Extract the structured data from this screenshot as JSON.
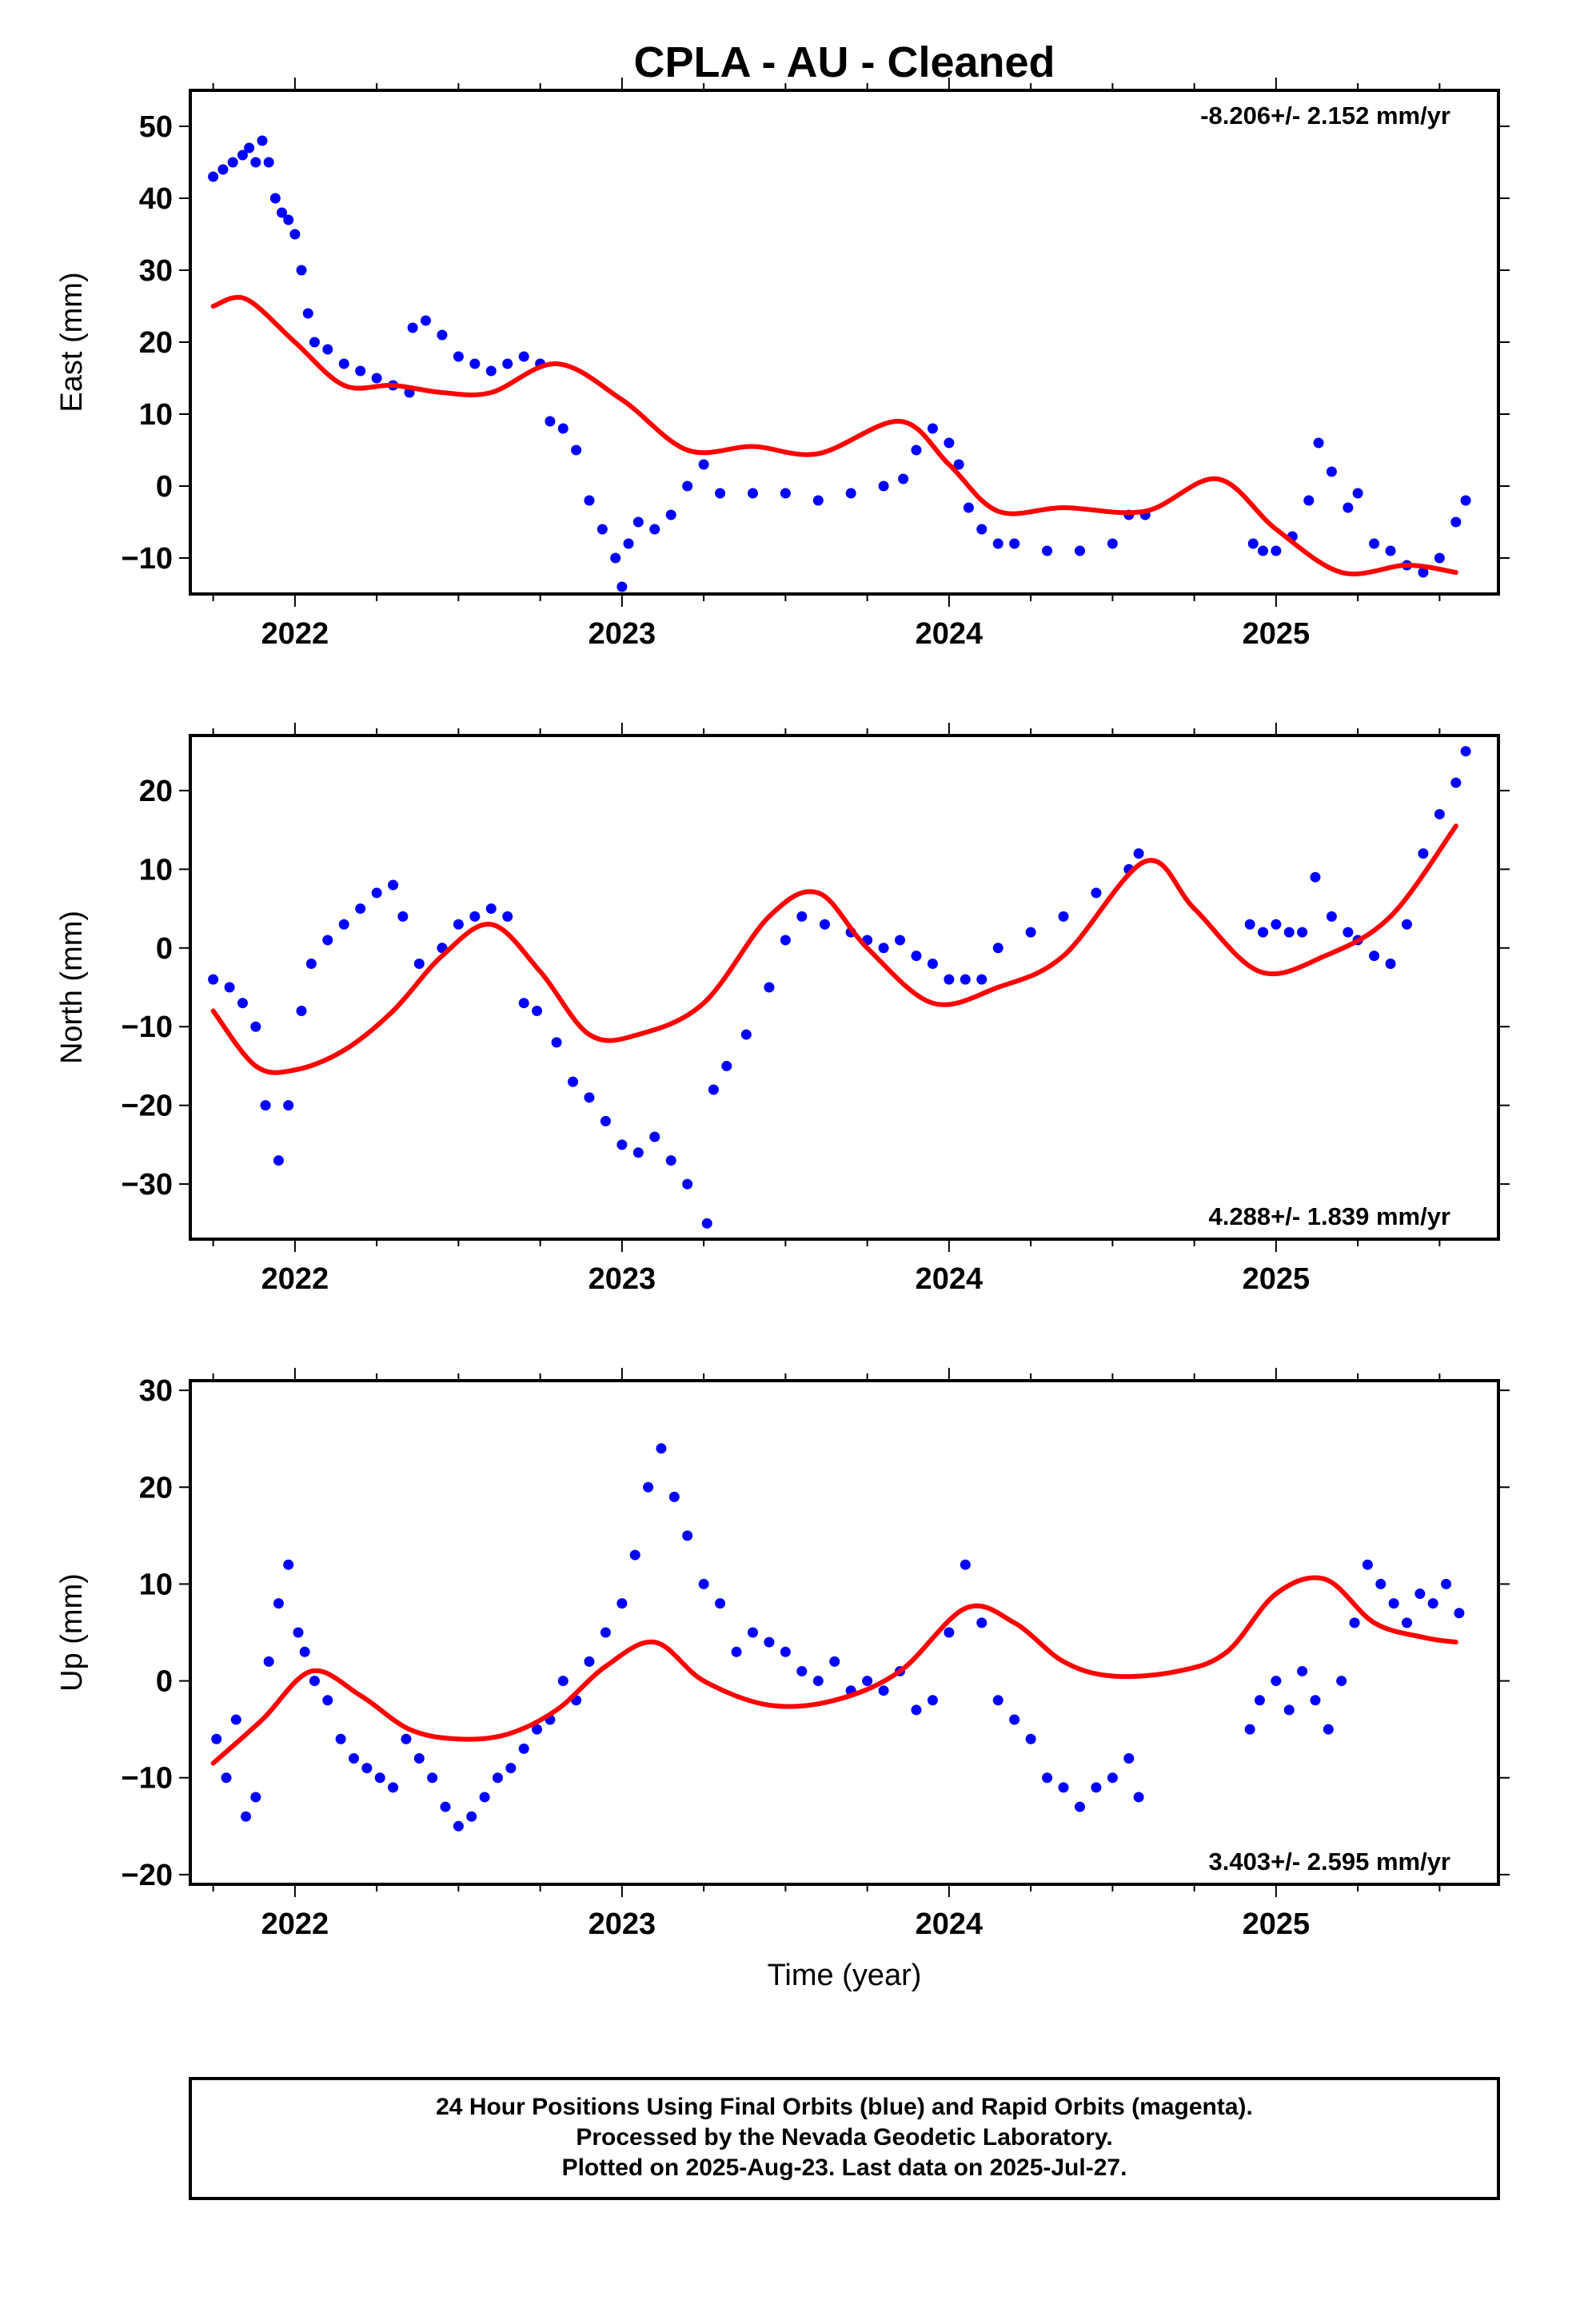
{
  "title": "CPLA  - AU - Cleaned",
  "xlabel": "Time (year)",
  "footer": {
    "line1": "24 Hour Positions Using Final Orbits (blue) and Rapid Orbits (magenta).",
    "line2": "Processed by the Nevada Geodetic Laboratory.",
    "line3": "Plotted on 2025-Aug-23. Last data on 2025-Jul-27."
  },
  "colors": {
    "points": "#0000ff",
    "fit": "#ff0000",
    "frame": "#000000"
  },
  "chart_data": [
    {
      "type": "scatter",
      "ylabel": "East (mm)",
      "rate": "-8.206+/- 2.152 mm/yr",
      "xlim": [
        2021.68,
        2025.68
      ],
      "ylim": [
        -15,
        55
      ],
      "xticks": [
        2022,
        2023,
        2024,
        2025
      ],
      "yticks": [
        -10,
        0,
        10,
        20,
        30,
        40,
        50
      ],
      "legend_position": "top-right",
      "grid": false,
      "series": [
        {
          "kind": "points",
          "x": [
            2021.75,
            2021.78,
            2021.81,
            2021.84,
            2021.86,
            2021.88,
            2021.9,
            2021.92,
            2021.94,
            2021.96,
            2021.98,
            2022.0,
            2022.02,
            2022.04,
            2022.06,
            2022.1,
            2022.15,
            2022.2,
            2022.25,
            2022.3,
            2022.35,
            2022.36,
            2022.4,
            2022.45,
            2022.5,
            2022.55,
            2022.6,
            2022.65,
            2022.7,
            2022.75,
            2022.78,
            2022.82,
            2022.86,
            2022.9,
            2022.94,
            2022.98,
            2023.0,
            2023.02,
            2023.05,
            2023.1,
            2023.15,
            2023.2,
            2023.25,
            2023.3,
            2023.4,
            2023.5,
            2023.6,
            2023.7,
            2023.8,
            2023.86,
            2023.9,
            2023.95,
            2024.0,
            2024.03,
            2024.06,
            2024.1,
            2024.15,
            2024.2,
            2024.3,
            2024.4,
            2024.5,
            2024.55,
            2024.6,
            2024.93,
            2024.96,
            2025.0,
            2025.05,
            2025.1,
            2025.13,
            2025.17,
            2025.22,
            2025.25,
            2025.3,
            2025.35,
            2025.4,
            2025.45,
            2025.5,
            2025.55,
            2025.58
          ],
          "y": [
            43,
            44,
            45,
            46,
            47,
            45,
            48,
            45,
            40,
            38,
            37,
            35,
            30,
            24,
            20,
            19,
            17,
            16,
            15,
            14,
            13,
            22,
            23,
            21,
            18,
            17,
            16,
            17,
            18,
            17,
            9,
            8,
            5,
            -2,
            -6,
            -10,
            -14,
            -8,
            -5,
            -6,
            -4,
            0,
            3,
            -1,
            -1,
            -1,
            -2,
            -1,
            0,
            1,
            5,
            8,
            6,
            3,
            -3,
            -6,
            -8,
            -8,
            -9,
            -9,
            -8,
            -4,
            -4,
            -8,
            -9,
            -9,
            -7,
            -2,
            6,
            2,
            -3,
            -1,
            -8,
            -9,
            -11,
            -12,
            -10,
            -5,
            -2
          ]
        },
        {
          "kind": "fit",
          "x": [
            2021.75,
            2021.85,
            2022.0,
            2022.15,
            2022.3,
            2022.45,
            2022.6,
            2022.8,
            2023.0,
            2023.2,
            2023.4,
            2023.6,
            2023.85,
            2024.0,
            2024.15,
            2024.35,
            2024.6,
            2024.82,
            2025.0,
            2025.2,
            2025.4,
            2025.55
          ],
          "y": [
            25,
            26,
            20,
            14,
            14,
            13,
            13,
            17,
            12,
            5,
            5.5,
            4.5,
            9,
            3,
            -3.5,
            -3,
            -3.5,
            1,
            -6,
            -12,
            -11,
            -12
          ]
        }
      ]
    },
    {
      "type": "scatter",
      "ylabel": "North (mm)",
      "rate": "4.288+/- 1.839 mm/yr",
      "xlim": [
        2021.68,
        2025.68
      ],
      "ylim": [
        -37,
        27
      ],
      "xticks": [
        2022,
        2023,
        2024,
        2025
      ],
      "yticks": [
        -30,
        -20,
        -10,
        0,
        10,
        20
      ],
      "legend_position": "bottom-right",
      "grid": false,
      "series": [
        {
          "kind": "points",
          "x": [
            2021.75,
            2021.8,
            2021.84,
            2021.88,
            2021.91,
            2021.95,
            2021.98,
            2022.02,
            2022.05,
            2022.1,
            2022.15,
            2022.2,
            2022.25,
            2022.3,
            2022.33,
            2022.38,
            2022.45,
            2022.5,
            2022.55,
            2022.6,
            2022.65,
            2022.7,
            2022.74,
            2022.8,
            2022.85,
            2022.9,
            2022.95,
            2023.0,
            2023.05,
            2023.1,
            2023.15,
            2023.2,
            2023.26,
            2023.28,
            2023.32,
            2023.38,
            2023.45,
            2023.5,
            2023.55,
            2023.62,
            2023.7,
            2023.75,
            2023.8,
            2023.85,
            2023.9,
            2023.95,
            2024.0,
            2024.05,
            2024.1,
            2024.15,
            2024.25,
            2024.35,
            2024.45,
            2024.55,
            2024.58,
            2024.92,
            2024.96,
            2025.0,
            2025.04,
            2025.08,
            2025.12,
            2025.17,
            2025.22,
            2025.25,
            2025.3,
            2025.35,
            2025.4,
            2025.45,
            2025.5,
            2025.55,
            2025.58
          ],
          "y": [
            -4,
            -5,
            -7,
            -10,
            -20,
            -27,
            -20,
            -8,
            -2,
            1,
            3,
            5,
            7,
            8,
            4,
            -2,
            0,
            3,
            4,
            5,
            4,
            -7,
            -8,
            -12,
            -17,
            -19,
            -22,
            -25,
            -26,
            -24,
            -27,
            -30,
            -35,
            -18,
            -15,
            -11,
            -5,
            1,
            4,
            3,
            2,
            1,
            0,
            1,
            -1,
            -2,
            -4,
            -4,
            -4,
            0,
            2,
            4,
            7,
            10,
            12,
            3,
            2,
            3,
            2,
            2,
            9,
            4,
            2,
            1,
            -1,
            -2,
            3,
            12,
            17,
            21,
            25
          ]
        },
        {
          "kind": "fit",
          "x": [
            2021.75,
            2021.88,
            2022.0,
            2022.15,
            2022.3,
            2022.45,
            2022.6,
            2022.75,
            2022.9,
            2023.05,
            2023.25,
            2023.45,
            2023.6,
            2023.75,
            2023.95,
            2024.15,
            2024.35,
            2024.6,
            2024.75,
            2024.95,
            2025.15,
            2025.35,
            2025.55
          ],
          "y": [
            -8,
            -15,
            -15.5,
            -13,
            -8,
            -1,
            3,
            -3,
            -11,
            -11,
            -7,
            4,
            7,
            0,
            -7,
            -5,
            -1,
            11,
            5,
            -3,
            -1,
            4,
            15.5
          ]
        }
      ]
    },
    {
      "type": "scatter",
      "ylabel": "Up (mm)",
      "rate": "3.403+/- 2.595 mm/yr",
      "xlabel": "Time (year)",
      "xlim": [
        2021.68,
        2025.68
      ],
      "ylim": [
        -21,
        31
      ],
      "xticks": [
        2022,
        2023,
        2024,
        2025
      ],
      "yticks": [
        -20,
        -10,
        0,
        10,
        20,
        30
      ],
      "legend_position": "bottom-right",
      "grid": false,
      "series": [
        {
          "kind": "points",
          "x": [
            2021.76,
            2021.79,
            2021.82,
            2021.85,
            2021.88,
            2021.92,
            2021.95,
            2021.98,
            2022.01,
            2022.03,
            2022.06,
            2022.1,
            2022.14,
            2022.18,
            2022.22,
            2022.26,
            2022.3,
            2022.34,
            2022.38,
            2022.42,
            2022.46,
            2022.5,
            2022.54,
            2022.58,
            2022.62,
            2022.66,
            2022.7,
            2022.74,
            2022.78,
            2022.82,
            2022.86,
            2022.9,
            2022.95,
            2023.0,
            2023.04,
            2023.08,
            2023.12,
            2023.16,
            2023.2,
            2023.25,
            2023.3,
            2023.35,
            2023.4,
            2023.45,
            2023.5,
            2023.55,
            2023.6,
            2023.65,
            2023.7,
            2023.75,
            2023.8,
            2023.85,
            2023.9,
            2023.95,
            2024.0,
            2024.05,
            2024.1,
            2024.15,
            2024.2,
            2024.25,
            2024.3,
            2024.35,
            2024.4,
            2024.45,
            2024.5,
            2024.55,
            2024.58,
            2024.92,
            2024.95,
            2025.0,
            2025.04,
            2025.08,
            2025.12,
            2025.16,
            2025.2,
            2025.24,
            2025.28,
            2025.32,
            2025.36,
            2025.4,
            2025.44,
            2025.48,
            2025.52,
            2025.56
          ],
          "y": [
            -6,
            -10,
            -4,
            -14,
            -12,
            2,
            8,
            12,
            5,
            3,
            0,
            -2,
            -6,
            -8,
            -9,
            -10,
            -11,
            -6,
            -8,
            -10,
            -13,
            -15,
            -14,
            -12,
            -10,
            -9,
            -7,
            -5,
            -4,
            0,
            -2,
            2,
            5,
            8,
            13,
            20,
            24,
            19,
            15,
            10,
            8,
            3,
            5,
            4,
            3,
            1,
            0,
            2,
            -1,
            0,
            -1,
            1,
            -3,
            -2,
            5,
            12,
            6,
            -2,
            -4,
            -6,
            -10,
            -11,
            -13,
            -11,
            -10,
            -8,
            -12,
            -5,
            -2,
            0,
            -3,
            1,
            -2,
            -5,
            0,
            6,
            12,
            10,
            8,
            6,
            9,
            8,
            10,
            7
          ]
        },
        {
          "kind": "fit",
          "x": [
            2021.75,
            2021.9,
            2022.05,
            2022.2,
            2022.35,
            2022.5,
            2022.65,
            2022.8,
            2022.95,
            2023.1,
            2023.25,
            2023.45,
            2023.65,
            2023.85,
            2024.05,
            2024.2,
            2024.35,
            2024.5,
            2024.7,
            2024.85,
            2025.0,
            2025.15,
            2025.3,
            2025.45,
            2025.55
          ],
          "y": [
            -8.5,
            -4,
            1,
            -1.5,
            -5,
            -6,
            -5.5,
            -3,
            1.5,
            4,
            0,
            -2.5,
            -2,
            1,
            7.5,
            6,
            2,
            0.5,
            1,
            3,
            9,
            10.5,
            6,
            4.5,
            4
          ]
        }
      ]
    }
  ]
}
